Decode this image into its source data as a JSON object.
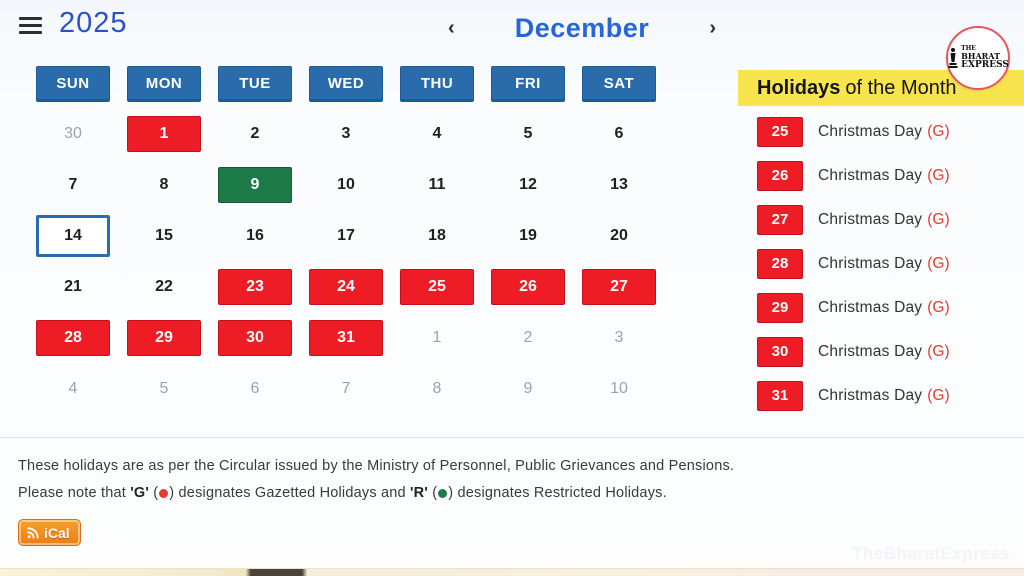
{
  "header": {
    "year": "2025",
    "month": "December",
    "prev_icon": "‹",
    "next_icon": "›"
  },
  "logo": {
    "line1": "THE",
    "line2": "BHARAT",
    "line3": "EXPRESS"
  },
  "calendar": {
    "day_headers": [
      "SUN",
      "MON",
      "TUE",
      "WED",
      "THU",
      "FRI",
      "SAT"
    ],
    "weeks": [
      [
        {
          "day": "30",
          "type": "other"
        },
        {
          "day": "1",
          "type": "holiday"
        },
        {
          "day": "2",
          "type": "normal"
        },
        {
          "day": "3",
          "type": "normal"
        },
        {
          "day": "4",
          "type": "normal"
        },
        {
          "day": "5",
          "type": "normal"
        },
        {
          "day": "6",
          "type": "normal"
        }
      ],
      [
        {
          "day": "7",
          "type": "normal"
        },
        {
          "day": "8",
          "type": "normal"
        },
        {
          "day": "9",
          "type": "special"
        },
        {
          "day": "10",
          "type": "normal"
        },
        {
          "day": "11",
          "type": "normal"
        },
        {
          "day": "12",
          "type": "normal"
        },
        {
          "day": "13",
          "type": "normal"
        }
      ],
      [
        {
          "day": "14",
          "type": "today"
        },
        {
          "day": "15",
          "type": "normal"
        },
        {
          "day": "16",
          "type": "normal"
        },
        {
          "day": "17",
          "type": "normal"
        },
        {
          "day": "18",
          "type": "normal"
        },
        {
          "day": "19",
          "type": "normal"
        },
        {
          "day": "20",
          "type": "normal"
        }
      ],
      [
        {
          "day": "21",
          "type": "normal"
        },
        {
          "day": "22",
          "type": "normal"
        },
        {
          "day": "23",
          "type": "holiday"
        },
        {
          "day": "24",
          "type": "holiday"
        },
        {
          "day": "25",
          "type": "holiday"
        },
        {
          "day": "26",
          "type": "holiday"
        },
        {
          "day": "27",
          "type": "holiday"
        }
      ],
      [
        {
          "day": "28",
          "type": "holiday"
        },
        {
          "day": "29",
          "type": "holiday"
        },
        {
          "day": "30",
          "type": "holiday"
        },
        {
          "day": "31",
          "type": "holiday"
        },
        {
          "day": "1",
          "type": "other"
        },
        {
          "day": "2",
          "type": "other"
        },
        {
          "day": "3",
          "type": "other"
        }
      ],
      [
        {
          "day": "4",
          "type": "other"
        },
        {
          "day": "5",
          "type": "other"
        },
        {
          "day": "6",
          "type": "other"
        },
        {
          "day": "7",
          "type": "other"
        },
        {
          "day": "8",
          "type": "other"
        },
        {
          "day": "9",
          "type": "other"
        },
        {
          "day": "10",
          "type": "other"
        }
      ]
    ]
  },
  "holidays_panel": {
    "title_bold": "Holidays",
    "title_rest": "of the Month",
    "items": [
      {
        "date": "25",
        "name": "Christmas Day",
        "tag": "(G)"
      },
      {
        "date": "26",
        "name": "Christmas Day",
        "tag": "(G)"
      },
      {
        "date": "27",
        "name": "Christmas Day",
        "tag": "(G)"
      },
      {
        "date": "28",
        "name": "Christmas Day",
        "tag": "(G)"
      },
      {
        "date": "29",
        "name": "Christmas Day",
        "tag": "(G)"
      },
      {
        "date": "30",
        "name": "Christmas Day",
        "tag": "(G)"
      },
      {
        "date": "31",
        "name": "Christmas Day",
        "tag": "(G)"
      }
    ]
  },
  "footer": {
    "line1": "These holidays are as per the Circular issued by the Ministry of Personnel, Public Grievances and Pensions.",
    "note": {
      "p1": "Please note that ",
      "g": "'G'",
      "p2": " (",
      "p3": ") designates Gazetted Holidays and ",
      "r": "'R'",
      "p4": " (",
      "p5": ") designates Restricted Holidays."
    },
    "ical_label": "iCal",
    "watermark": "TheBharatExpress"
  },
  "colors": {
    "header_blue": "#2a6cab",
    "holiday_red": "#ee1c24",
    "restricted_green": "#1b7a46",
    "today_border_blue": "#2a6cae",
    "panel_yellow": "#f8e44d",
    "link_blue": "#2866d8",
    "ical_orange": "#ee7d14"
  }
}
